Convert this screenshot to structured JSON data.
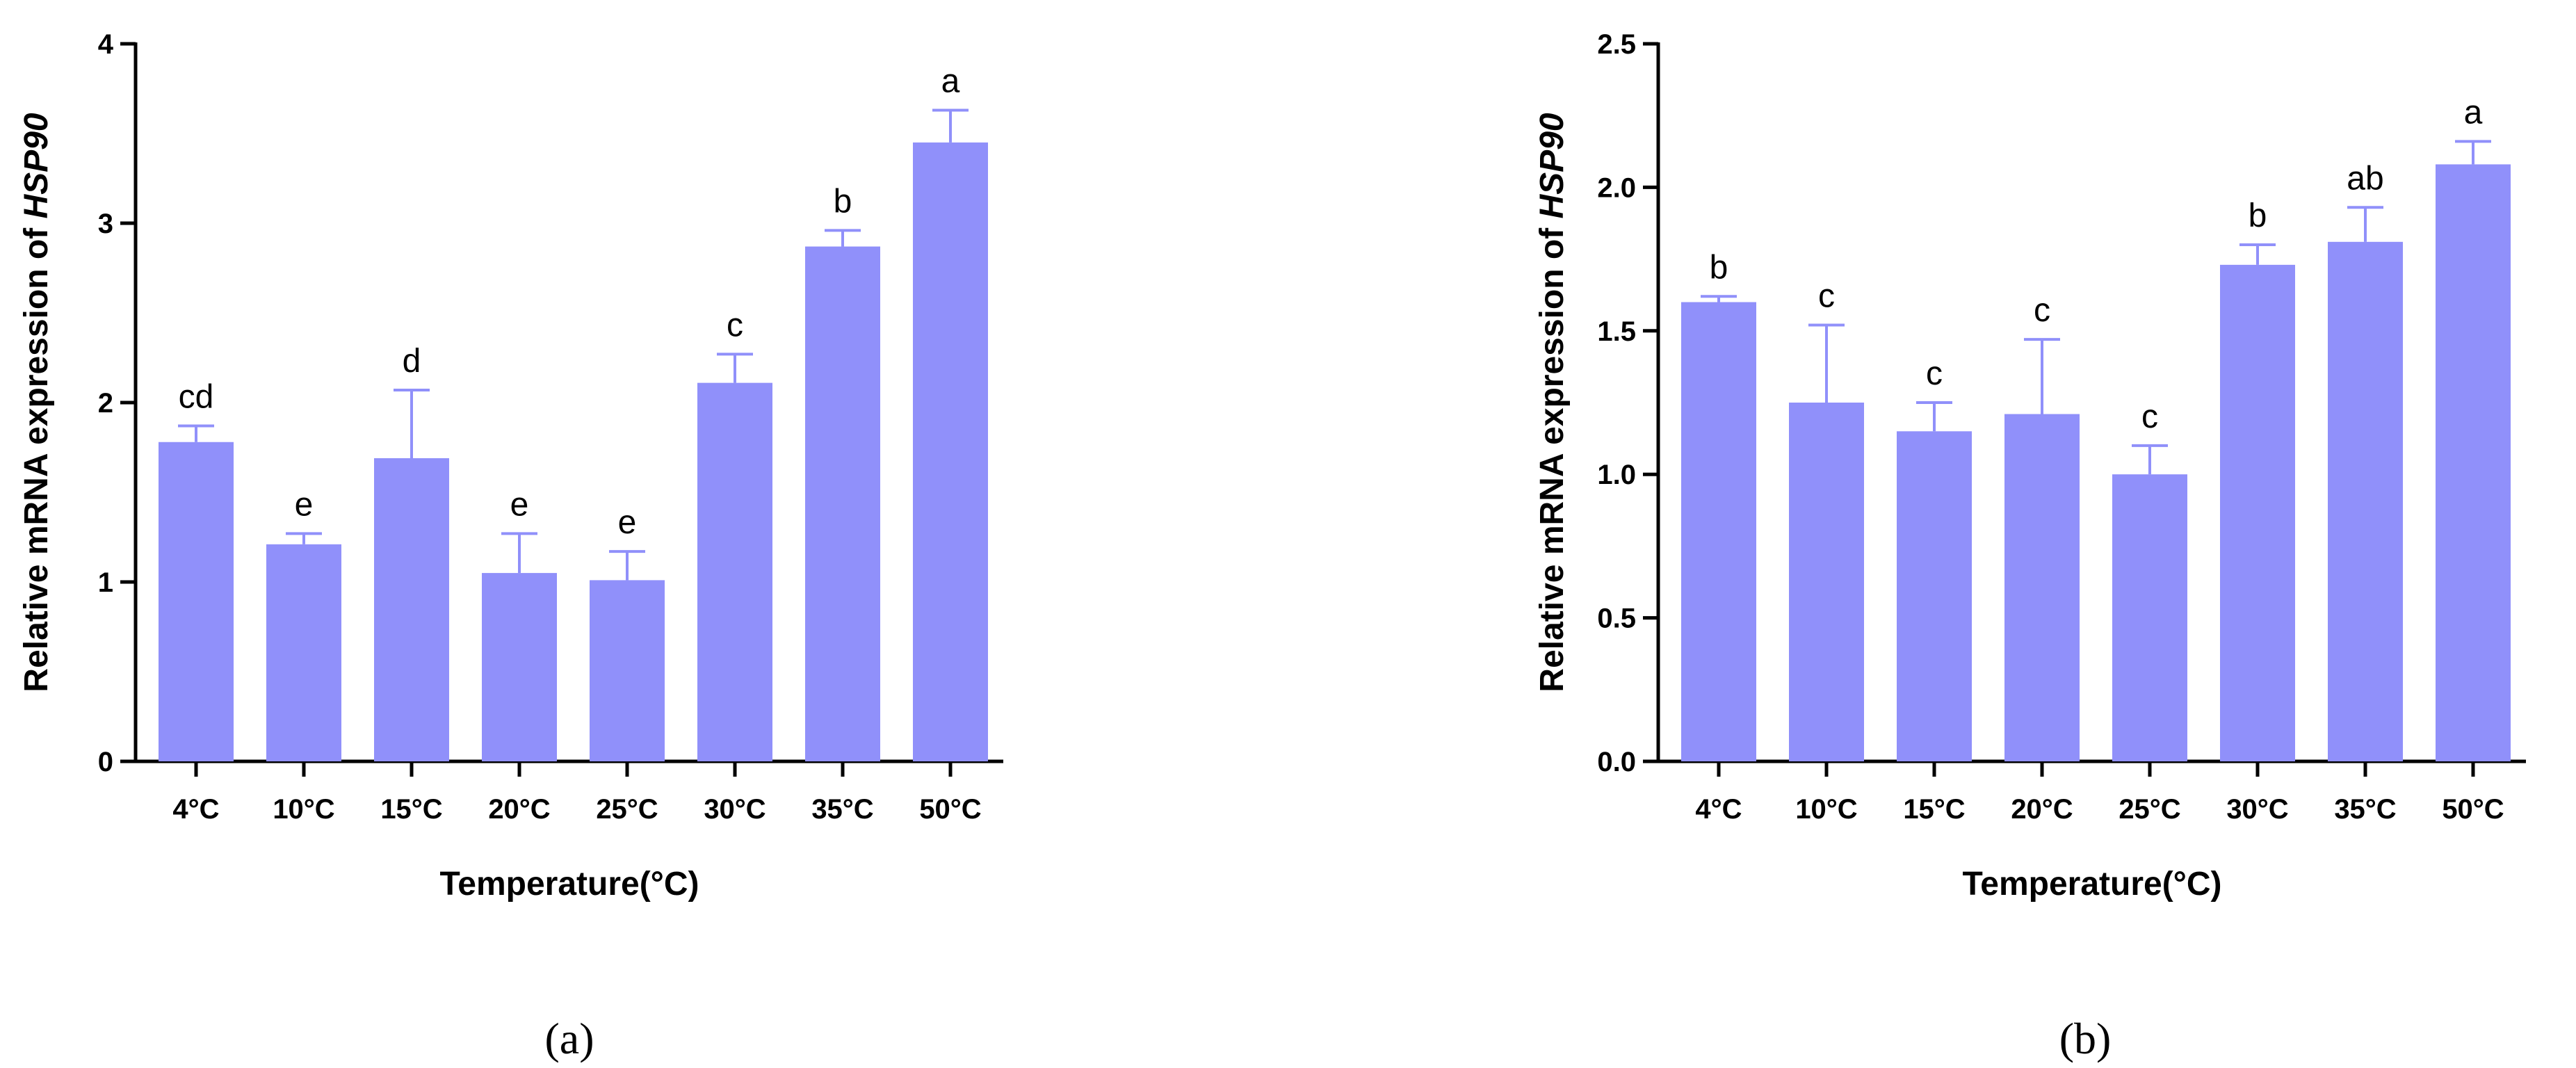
{
  "chart_data": [
    {
      "type": "bar",
      "panel_label": "(a)",
      "categories": [
        "4°C",
        "10°C",
        "15°C",
        "20°C",
        "25°C",
        "30°C",
        "35°C",
        "50°C"
      ],
      "values": [
        1.78,
        1.21,
        1.69,
        1.05,
        1.01,
        2.11,
        2.87,
        3.45
      ],
      "errors": [
        0.09,
        0.06,
        0.38,
        0.22,
        0.16,
        0.16,
        0.09,
        0.18
      ],
      "significance": [
        "cd",
        "e",
        "d",
        "e",
        "e",
        "c",
        "b",
        "a"
      ],
      "xlabel": "Temperature(°C)",
      "ylabel_prefix": "Relative mRNA expression of ",
      "ylabel_gene": "HSP90",
      "ylim": [
        0,
        4
      ],
      "yticks": [
        "0",
        "1",
        "2",
        "3",
        "4"
      ],
      "bar_color": "#9090fa"
    },
    {
      "type": "bar",
      "panel_label": "(b)",
      "categories": [
        "4°C",
        "10°C",
        "15°C",
        "20°C",
        "25°C",
        "30°C",
        "35°C",
        "50°C"
      ],
      "values": [
        1.6,
        1.25,
        1.15,
        1.21,
        1.0,
        1.73,
        1.81,
        2.08
      ],
      "errors": [
        0.02,
        0.27,
        0.1,
        0.26,
        0.1,
        0.07,
        0.12,
        0.08
      ],
      "significance": [
        "b",
        "c",
        "c",
        "c",
        "c",
        "b",
        "ab",
        "a"
      ],
      "xlabel": "Temperature(°C)",
      "ylabel_prefix": "Relative mRNA expression of ",
      "ylabel_gene": "HSP90",
      "ylim": [
        0,
        2.5
      ],
      "yticks": [
        "0.0",
        "0.5",
        "1.0",
        "1.5",
        "2.0",
        "2.5"
      ],
      "bar_color": "#9090fa"
    }
  ]
}
